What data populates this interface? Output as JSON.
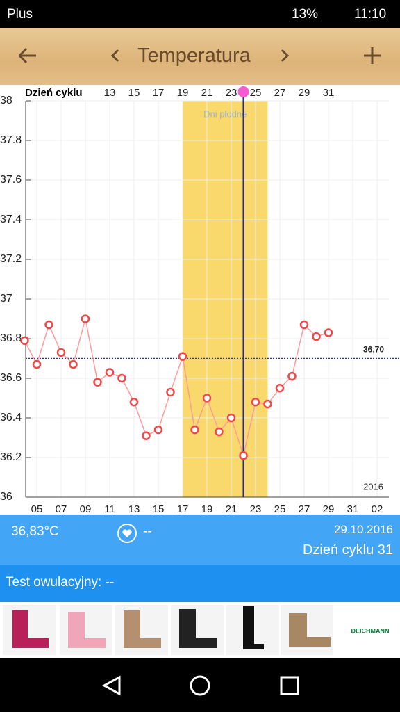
{
  "status_bar": {
    "carrier": "Plus",
    "battery": "13%",
    "time": "11:10"
  },
  "header": {
    "title": "Temperatura"
  },
  "chart_data": {
    "type": "line",
    "x_label": "Dzień cyklu",
    "categories": [
      "04",
      "05",
      "06",
      "07",
      "08",
      "09",
      "10",
      "11",
      "12",
      "13",
      "14",
      "15",
      "16",
      "17",
      "18",
      "19",
      "20",
      "21",
      "22",
      "23",
      "24",
      "25",
      "26",
      "27",
      "28",
      "29",
      "30",
      "31",
      "01",
      "02"
    ],
    "x_tick_labels": [
      null,
      "05",
      null,
      "07",
      null,
      "09",
      null,
      "11",
      null,
      "13",
      null,
      "15",
      null,
      "17",
      null,
      "19",
      null,
      "21",
      null,
      "23",
      null,
      "25",
      null,
      "27",
      null,
      "29",
      null,
      "31",
      null,
      "02"
    ],
    "top_labels": [
      null,
      null,
      null,
      null,
      null,
      null,
      null,
      "13",
      null,
      "15",
      null,
      "17",
      null,
      "19",
      null,
      "21",
      null,
      "23",
      null,
      "25",
      null,
      "27",
      null,
      "29",
      null,
      "31",
      null,
      null,
      null,
      null
    ],
    "series": [
      {
        "name": "Temperatura",
        "color": "#ff9a9a",
        "marker_color": "#f04848",
        "values": [
          36.79,
          36.67,
          36.87,
          36.73,
          36.67,
          36.9,
          36.58,
          36.63,
          36.6,
          36.48,
          36.31,
          36.34,
          36.53,
          36.71,
          36.34,
          36.5,
          36.33,
          36.4,
          36.21,
          36.48,
          36.47,
          36.55,
          36.61,
          36.87,
          36.81,
          36.83,
          null,
          null,
          null,
          null
        ]
      }
    ],
    "ylim": [
      36,
      38
    ],
    "yticks": [
      36,
      36.2,
      36.4,
      36.6,
      36.8,
      37,
      37.2,
      37.4,
      37.6,
      37.8,
      38
    ],
    "grid": true,
    "coverline": {
      "value": 36.7,
      "label": "36,70",
      "color": "#2b2bd6"
    },
    "fertile_window": {
      "label": "Dni płodne",
      "from": "17",
      "to": "24",
      "color": "#f9d96c"
    },
    "today": {
      "category": "22",
      "color": "#2a2a8f"
    },
    "year": "2016"
  },
  "summary": {
    "temperature": "36,83°C",
    "heart": "--",
    "date": "29.10.2016",
    "cycle_day": "Dzień cyklu 31"
  },
  "ovulation": {
    "label": "Test owulacyjny: --"
  },
  "ad": {
    "brand": "DEICHMANN"
  }
}
